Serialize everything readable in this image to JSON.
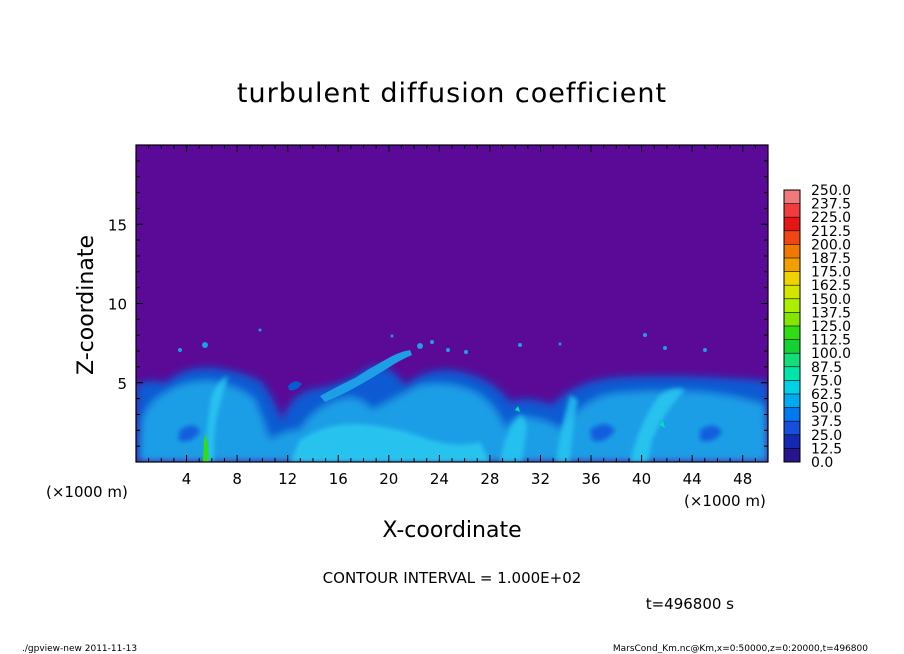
{
  "chart_data": {
    "type": "heatmap",
    "title": "turbulent diffusion coefficient",
    "xlabel": "X-coordinate",
    "ylabel": "Z-coordinate",
    "x_unit_left": "(×1000 m)",
    "x_unit_right": "(×1000 m)",
    "xlim": [
      0,
      50
    ],
    "ylim": [
      0,
      20
    ],
    "xticks": [
      4,
      8,
      12,
      16,
      20,
      24,
      28,
      32,
      36,
      40,
      44,
      48
    ],
    "yticks": [
      5,
      10,
      15
    ],
    "colorbar": {
      "levels": [
        "250.0",
        "237.5",
        "225.0",
        "212.5",
        "200.0",
        "187.5",
        "175.0",
        "162.5",
        "150.0",
        "137.5",
        "125.0",
        "112.5",
        "100.0",
        "87.5",
        "75.0",
        "62.5",
        "50.0",
        "37.5",
        "25.0",
        "12.5",
        "0.0"
      ],
      "colors": [
        "#f07a7a",
        "#f03c3c",
        "#e61414",
        "#f04614",
        "#f07800",
        "#f0a000",
        "#f0d200",
        "#d2e600",
        "#aaf000",
        "#82e600",
        "#32dc14",
        "#14d232",
        "#14dc78",
        "#00e6aa",
        "#00d2e6",
        "#00aaf0",
        "#0078f0",
        "#1450dc",
        "#1428b4",
        "#28148c",
        "#5a0a96"
      ]
    },
    "background_color": "#5a0a96",
    "contour_interval_text": "CONTOUR INTERVAL = 1.000E+02",
    "time_text": "t=496800 s"
  },
  "footer": {
    "left": "./gpview-new   2011-11-13",
    "right": "MarsCond_Km.nc@Km,x=0:50000,z=0:20000,t=496800"
  }
}
